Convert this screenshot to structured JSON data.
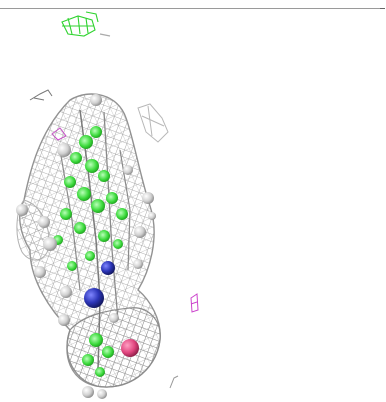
{
  "scene": {
    "colors": {
      "background": "#ffffff",
      "mesh": "#9c9c9c",
      "mesh_dark": "#6f6f6f",
      "carbon": "#3ad93a",
      "nitrogen": "#2c35b8",
      "oxygen": "#e0457e",
      "hydrogen": "#d6d6d6",
      "stray_green": "#33cc33",
      "stray_magenta": "#cc44cc"
    },
    "icons": {
      "molecule": "molecular-surface-mesh-icon"
    }
  }
}
